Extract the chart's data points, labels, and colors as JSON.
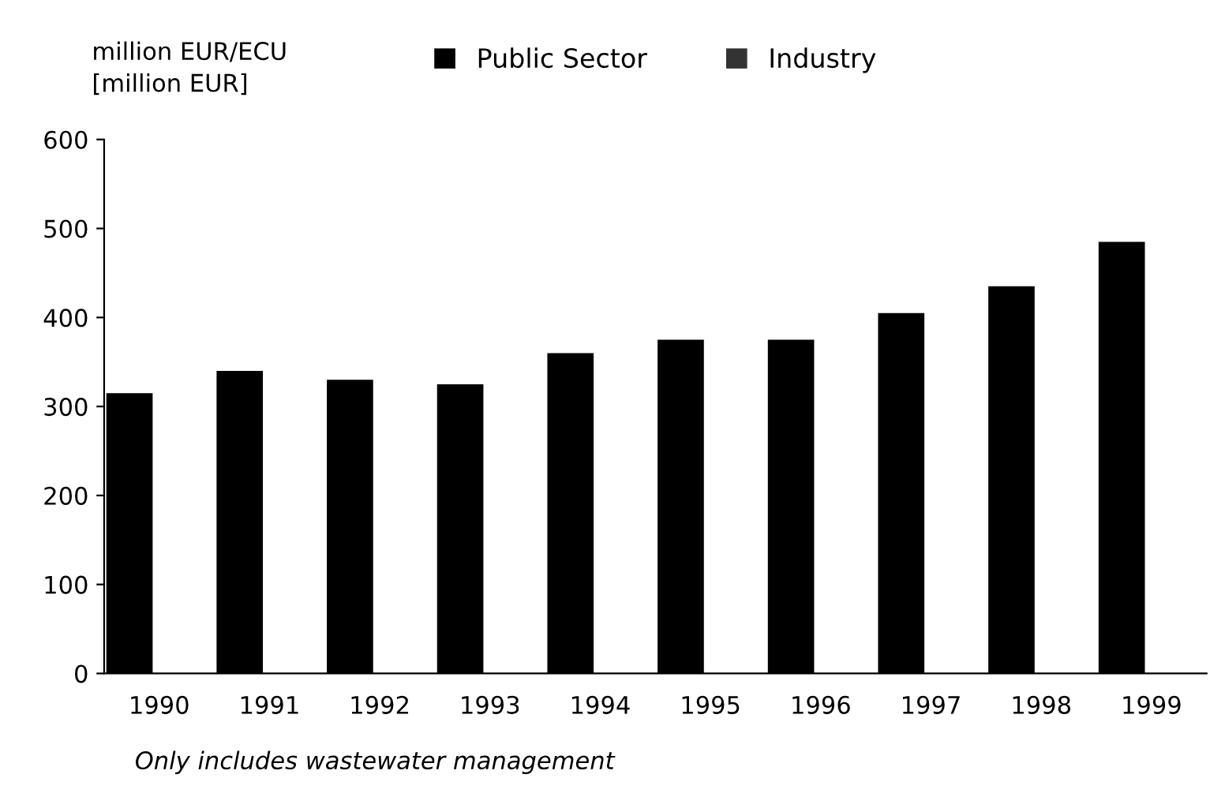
{
  "chart_data": {
    "type": "bar",
    "ylabel": "million EUR/ECU",
    "categories": [
      "1990",
      "1991",
      "1992",
      "1993",
      "1994",
      "1995",
      "1996",
      "1997",
      "1998",
      "1999"
    ],
    "series": [
      {
        "name": "Public Sector",
        "color": "#000000",
        "values": [
          315,
          340,
          330,
          325,
          360,
          375,
          375,
          405,
          435,
          485
        ]
      },
      {
        "name": "Industry",
        "color": "#333333",
        "values": [
          0,
          0,
          0,
          0,
          0,
          0,
          0,
          0,
          0,
          0
        ]
      }
    ],
    "ylim": [
      0,
      600
    ],
    "yticks": [
      0,
      100,
      200,
      300,
      400,
      500,
      600
    ],
    "grid": false,
    "legend": "top",
    "annotations": [
      "[million EUR]",
      "Only includes wastewater management"
    ]
  }
}
